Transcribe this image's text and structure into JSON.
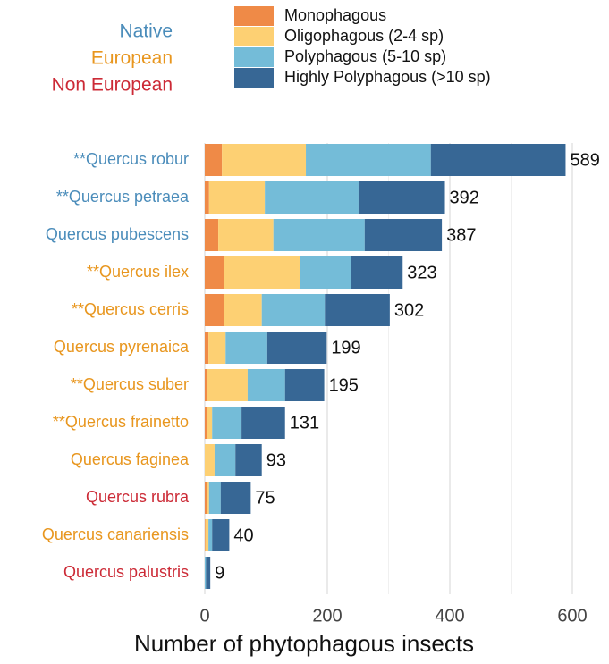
{
  "chart_data": {
    "type": "stacked_barh",
    "x_label": "Number of phytophagous insects",
    "categories": [
      "**Quercus robur",
      "**Quercus petraea",
      "Quercus pubescens",
      "**Quercus ilex",
      "**Quercus cerris",
      "Quercus pyrenaica",
      "**Quercus suber",
      "**Quercus frainetto",
      "Quercus faginea",
      "Quercus rubra",
      "Quercus canariensis",
      "Quercus palustris"
    ],
    "category_colors": [
      "#4a8cba",
      "#4a8cba",
      "#4a8cba",
      "#e8961e",
      "#e8961e",
      "#e8961e",
      "#e8961e",
      "#e8961e",
      "#e8961e",
      "#cc2a36",
      "#e8961e",
      "#cc2a36"
    ],
    "origin_legend": [
      {
        "label": "Native",
        "color": "#4a8cba"
      },
      {
        "label": "European",
        "color": "#e8961e"
      },
      {
        "label": "Non European",
        "color": "#cc2a36"
      }
    ],
    "series": [
      {
        "name": "Monophagous",
        "color": "#ef8a47",
        "values": [
          28,
          7,
          22,
          31,
          31,
          6,
          4,
          3,
          0,
          3,
          1,
          0
        ]
      },
      {
        "name": "Oligophagous (2-4 sp)",
        "color": "#fdd073",
        "values": [
          137,
          91,
          90,
          124,
          62,
          28,
          66,
          9,
          16,
          4,
          5,
          0
        ]
      },
      {
        "name": "Polyphagous (5-10 sp)",
        "color": "#74bcd8",
        "values": [
          204,
          153,
          149,
          83,
          103,
          68,
          61,
          48,
          34,
          19,
          6,
          2
        ]
      },
      {
        "name": "Highly Polyphagous (>10 sp)",
        "color": "#376795",
        "values": [
          220,
          141,
          126,
          85,
          106,
          97,
          64,
          71,
          43,
          49,
          28,
          7
        ]
      }
    ],
    "totals": [
      589,
      392,
      387,
      323,
      302,
      199,
      195,
      131,
      93,
      75,
      40,
      9
    ],
    "xlim": [
      0,
      600
    ],
    "xticks": [
      0,
      200,
      400,
      600
    ],
    "minor_xticks": [
      100,
      300,
      500
    ],
    "grid": true
  }
}
